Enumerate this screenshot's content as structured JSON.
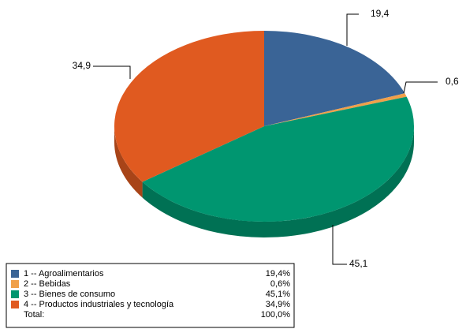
{
  "chart_data": {
    "type": "pie",
    "categories": [
      "1 -- Agroalimentarios",
      "2 -- Bebidas",
      "3 -- Bienes de consumo",
      "4 -- Productos industriales y tecnología"
    ],
    "values": [
      19.4,
      0.6,
      45.1,
      34.9
    ],
    "value_labels": [
      "19,4",
      "0,6",
      "45,1",
      "34,9"
    ],
    "legend_value_labels": [
      "19,4%",
      "0,6%",
      "45,1%",
      "34,9%"
    ],
    "colors": [
      "#3a6496",
      "#f0a04a",
      "#009670",
      "#e05a20"
    ],
    "total": 100,
    "total_name": "Total:",
    "total_label": "100,0%"
  }
}
